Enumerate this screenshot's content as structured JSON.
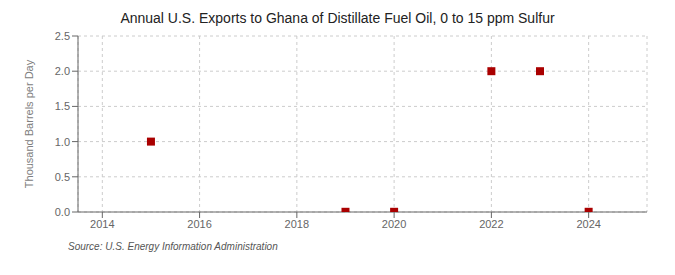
{
  "chart_data": {
    "type": "scatter",
    "title": "Annual U.S. Exports to Ghana of Distillate Fuel Oil, 0 to 15 ppm Sulfur",
    "ylabel": "Thousand Barrels per Day",
    "annotations": [
      "Source: U.S. Energy Information Administration"
    ],
    "x": [
      2015,
      2019,
      2020,
      2022,
      2023,
      2024
    ],
    "values": [
      1.0,
      0.003,
      0.003,
      2.0,
      2.0,
      0.003
    ],
    "color": "#aa0000",
    "marker": "square",
    "xlim": [
      2013.5,
      2025.2
    ],
    "ylim": [
      0.0,
      2.5
    ],
    "xticks": [
      2014,
      2016,
      2018,
      2020,
      2022,
      2024
    ],
    "yticks": [
      {
        "value": 0,
        "label": "0.0"
      },
      0.5,
      {
        "value": 1,
        "label": "1.0"
      },
      1.5,
      {
        "value": 2,
        "label": "2.0"
      },
      2.5
    ],
    "grid": true
  }
}
